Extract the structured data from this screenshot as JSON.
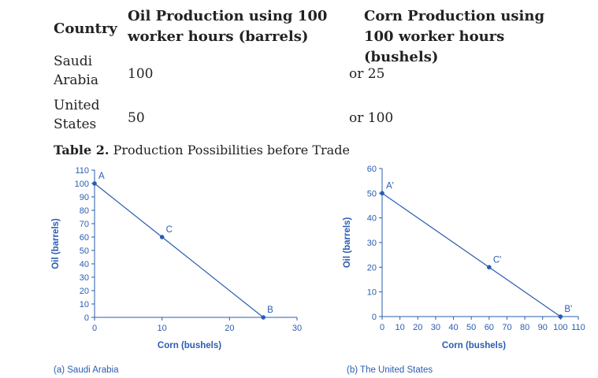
{
  "table": {
    "headers": [
      "Country",
      "Oil Production using 100 worker hours (barrels)",
      "Corn Production using 100 worker hours (bushels)"
    ],
    "rows": [
      {
        "country": "Saudi Arabia",
        "oil": "100",
        "corn": "or 25"
      },
      {
        "country": "United States",
        "oil": "50",
        "corn": "or 100"
      }
    ],
    "caption_label": "Table 2.",
    "caption_text": "Production Possibilities before Trade"
  },
  "chart_data": [
    {
      "type": "line",
      "caption": "(a) Saudi Arabia",
      "xlabel": "Corn (bushels)",
      "ylabel": "Oil (barrels)",
      "xlim": [
        0,
        30
      ],
      "ylim": [
        0,
        110
      ],
      "xticks": [
        0,
        10,
        20,
        30
      ],
      "yticks": [
        0,
        10,
        20,
        30,
        40,
        50,
        60,
        70,
        80,
        90,
        100,
        110
      ],
      "series": [
        {
          "x": [
            0,
            10,
            25
          ],
          "y": [
            100,
            60,
            0
          ]
        }
      ],
      "points": [
        {
          "label": "A",
          "x": 0,
          "y": 100
        },
        {
          "label": "C",
          "x": 10,
          "y": 60
        },
        {
          "label": "B",
          "x": 25,
          "y": 0
        }
      ],
      "grid": false,
      "color": "#2a5db0"
    },
    {
      "type": "line",
      "caption": "(b) The United States",
      "xlabel": "Corn (bushels)",
      "ylabel": "Oil (barrels)",
      "xlim": [
        0,
        110
      ],
      "ylim": [
        0,
        60
      ],
      "xticks": [
        0,
        10,
        20,
        30,
        40,
        50,
        60,
        70,
        80,
        90,
        100,
        110
      ],
      "yticks": [
        0,
        10,
        20,
        30,
        40,
        50,
        60
      ],
      "series": [
        {
          "x": [
            0,
            60,
            100
          ],
          "y": [
            50,
            20,
            0
          ]
        }
      ],
      "points": [
        {
          "label": "A'",
          "x": 0,
          "y": 50
        },
        {
          "label": "C'",
          "x": 60,
          "y": 20
        },
        {
          "label": "B'",
          "x": 100,
          "y": 0
        }
      ],
      "grid": false,
      "color": "#2a5db0"
    }
  ]
}
